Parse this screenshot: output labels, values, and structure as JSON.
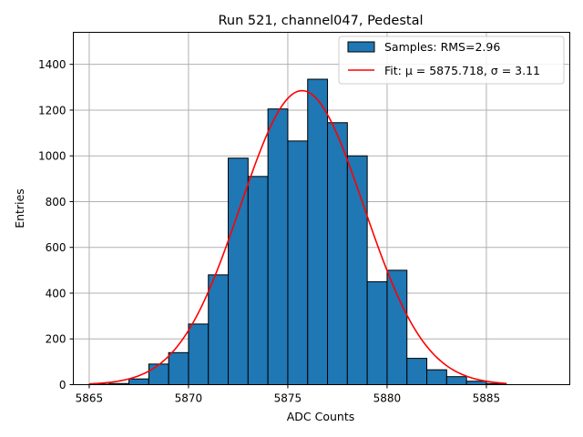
{
  "chart_data": {
    "type": "bar",
    "title": "Run 521, channel047, Pedestal",
    "xlabel": "ADC Counts",
    "ylabel": "Entries",
    "xlim": [
      5864.2,
      5889.2
    ],
    "ylim": [
      0,
      1540
    ],
    "xticks": [
      5865,
      5870,
      5875,
      5880,
      5885
    ],
    "yticks": [
      0,
      200,
      400,
      600,
      800,
      1000,
      1200,
      1400
    ],
    "grid": true,
    "legend_position": "top-right",
    "bin_width": 1,
    "bins": [
      {
        "x0": 5865,
        "count": 2
      },
      {
        "x0": 5866,
        "count": 5
      },
      {
        "x0": 5867,
        "count": 25
      },
      {
        "x0": 5868,
        "count": 90
      },
      {
        "x0": 5869,
        "count": 140
      },
      {
        "x0": 5870,
        "count": 265
      },
      {
        "x0": 5871,
        "count": 480
      },
      {
        "x0": 5872,
        "count": 990
      },
      {
        "x0": 5873,
        "count": 910
      },
      {
        "x0": 5874,
        "count": 1205
      },
      {
        "x0": 5875,
        "count": 1065
      },
      {
        "x0": 5876,
        "count": 1335
      },
      {
        "x0": 5877,
        "count": 1145
      },
      {
        "x0": 5878,
        "count": 1000
      },
      {
        "x0": 5879,
        "count": 450
      },
      {
        "x0": 5880,
        "count": 500
      },
      {
        "x0": 5881,
        "count": 115
      },
      {
        "x0": 5882,
        "count": 65
      },
      {
        "x0": 5883,
        "count": 35
      },
      {
        "x0": 5884,
        "count": 15
      },
      {
        "x0": 5885,
        "count": 5
      }
    ],
    "series": [
      {
        "name": "Samples: RMS=2.96",
        "type": "histogram",
        "color": "#1f77b4"
      },
      {
        "name": "Fit: μ = 5875.718, σ = 3.11",
        "type": "line",
        "color": "#ff0000",
        "fit": {
          "mu": 5875.718,
          "sigma": 3.11,
          "amplitude": 1285,
          "x_range": [
            5865,
            5886
          ]
        }
      }
    ]
  }
}
